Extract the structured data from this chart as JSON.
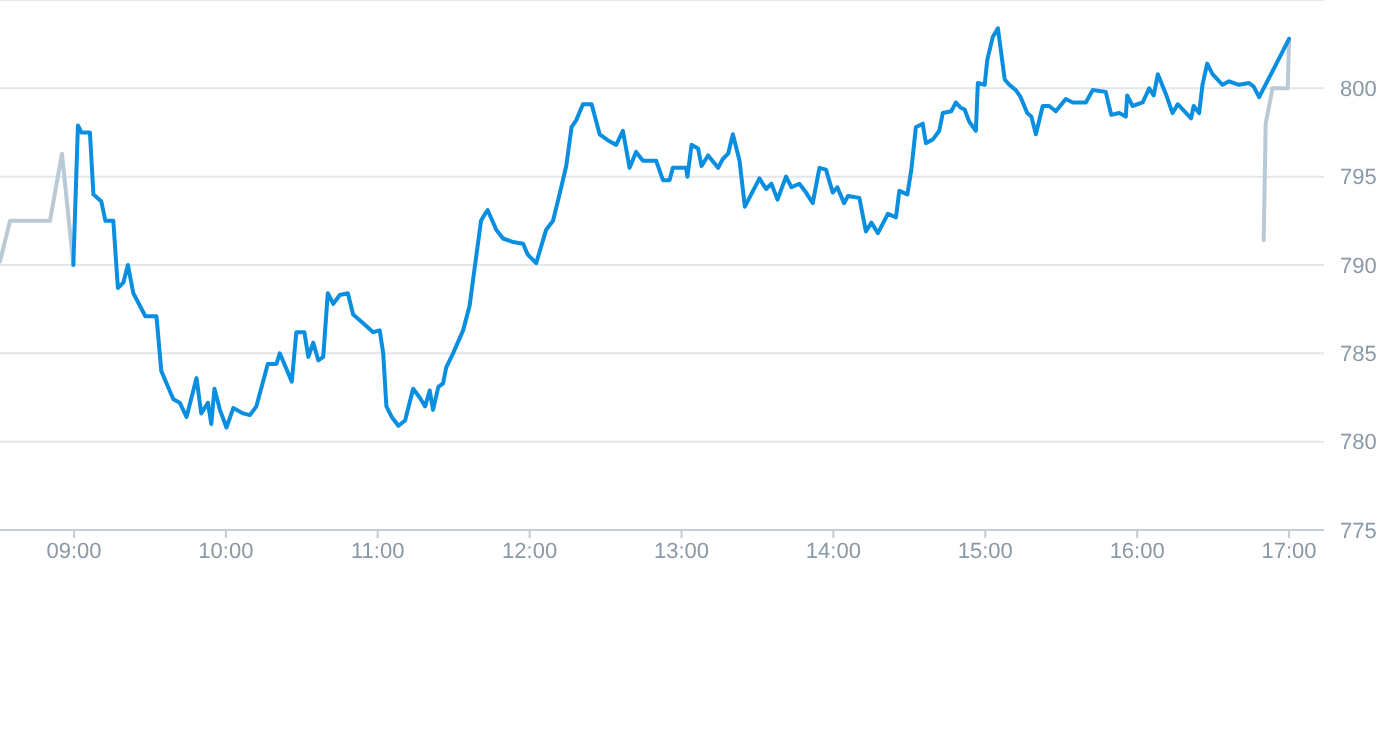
{
  "chart_data": {
    "type": "line",
    "xlim": [
      8.513,
      17.23
    ],
    "ylim": [
      775,
      805
    ],
    "xticks": [
      {
        "value": 9,
        "label": "09:00"
      },
      {
        "value": 10,
        "label": "10:00"
      },
      {
        "value": 11,
        "label": "11:00"
      },
      {
        "value": 12,
        "label": "12:00"
      },
      {
        "value": 13,
        "label": "13:00"
      },
      {
        "value": 14,
        "label": "14:00"
      },
      {
        "value": 15,
        "label": "15:00"
      },
      {
        "value": 16,
        "label": "16:00"
      },
      {
        "value": 17,
        "label": "17:00"
      }
    ],
    "yticks": [
      775,
      780,
      785,
      790,
      795,
      800
    ],
    "grid": "y",
    "marker": "none",
    "line_style": "solid",
    "series": [
      {
        "color": "#b9c9d6",
        "x": [
          8.513,
          8.579,
          8.842,
          8.921,
          8.996
        ],
        "values": [
          790.2,
          792.5,
          792.5,
          796.3,
          790.0
        ]
      },
      {
        "color": "#b9c9d6",
        "x": [
          16.833,
          16.846,
          16.891,
          16.991,
          17.0
        ],
        "values": [
          791.4,
          798.0,
          800.0,
          800.0,
          802.8
        ]
      },
      {
        "color": "#0a8fe0",
        "x": [
          8.996,
          9.026,
          9.049,
          9.105,
          9.128,
          9.18,
          9.207,
          9.259,
          9.289,
          9.325,
          9.355,
          9.391,
          9.47,
          9.543,
          9.575,
          9.654,
          9.697,
          9.741,
          9.807,
          9.838,
          9.882,
          9.904,
          9.925,
          9.961,
          10.004,
          10.049,
          10.114,
          10.158,
          10.201,
          10.276,
          10.333,
          10.355,
          10.434,
          10.464,
          10.517,
          10.543,
          10.575,
          10.609,
          10.641,
          10.671,
          10.707,
          10.75,
          10.803,
          10.838,
          10.904,
          10.97,
          11.013,
          11.036,
          11.057,
          11.092,
          11.136,
          11.18,
          11.233,
          11.276,
          11.312,
          11.342,
          11.364,
          11.399,
          11.43,
          11.451,
          11.496,
          11.562,
          11.605,
          11.636,
          11.68,
          11.707,
          11.724,
          11.78,
          11.825,
          11.891,
          11.957,
          11.987,
          12.043,
          12.109,
          12.154,
          12.197,
          12.241,
          12.276,
          12.307,
          12.351,
          12.408,
          12.461,
          12.526,
          12.57,
          12.614,
          12.658,
          12.701,
          12.746,
          12.833,
          12.878,
          12.921,
          12.943,
          13.03,
          13.039,
          13.066,
          13.109,
          13.132,
          13.175,
          13.241,
          13.272,
          13.307,
          13.338,
          13.382,
          13.417,
          13.447,
          13.513,
          13.557,
          13.592,
          13.632,
          13.688,
          13.724,
          13.776,
          13.82,
          13.864,
          13.908,
          13.951,
          13.996,
          14.026,
          14.07,
          14.096,
          14.171,
          14.214,
          14.25,
          14.293,
          14.359,
          14.412,
          14.434,
          14.487,
          14.513,
          14.543,
          14.588,
          14.609,
          14.654,
          14.697,
          14.72,
          14.776,
          14.807,
          14.838,
          14.864,
          14.895,
          14.938,
          14.951,
          14.996,
          15.013,
          15.049,
          15.083,
          15.128,
          15.158,
          15.201,
          15.233,
          15.276,
          15.303,
          15.333,
          15.378,
          15.421,
          15.464,
          15.53,
          15.575,
          15.662,
          15.707,
          15.793,
          15.829,
          15.882,
          15.925,
          15.934,
          15.97,
          16.036,
          16.079,
          16.109,
          16.136,
          16.188,
          16.233,
          16.267,
          16.355,
          16.372,
          16.408,
          16.43,
          16.461,
          16.496,
          16.562,
          16.605,
          16.671,
          16.737,
          16.767,
          16.803,
          17.0
        ],
        "values": [
          790.0,
          797.9,
          797.5,
          797.5,
          794.0,
          793.6,
          792.5,
          792.5,
          788.7,
          789.0,
          790.0,
          788.4,
          787.1,
          787.1,
          784.0,
          782.4,
          782.2,
          781.4,
          783.6,
          781.6,
          782.2,
          781.0,
          783.0,
          781.8,
          780.8,
          781.9,
          781.6,
          781.5,
          782.0,
          784.4,
          784.4,
          785.0,
          783.4,
          786.2,
          786.2,
          784.8,
          785.6,
          784.6,
          784.8,
          788.4,
          787.8,
          788.3,
          788.4,
          787.2,
          786.7,
          786.2,
          786.3,
          785.0,
          782.0,
          781.4,
          780.9,
          781.2,
          783.0,
          782.5,
          782.0,
          782.9,
          781.8,
          783.1,
          783.3,
          784.2,
          785.0,
          786.3,
          787.7,
          789.7,
          792.5,
          792.9,
          793.1,
          792.0,
          791.5,
          791.3,
          791.2,
          790.6,
          790.1,
          792.0,
          792.5,
          794.0,
          795.6,
          797.8,
          798.2,
          799.1,
          799.1,
          797.4,
          797.0,
          796.8,
          797.6,
          795.5,
          796.4,
          795.9,
          795.9,
          794.8,
          794.8,
          795.5,
          795.5,
          795.0,
          796.8,
          796.6,
          795.6,
          796.2,
          795.5,
          796.0,
          796.3,
          797.4,
          795.9,
          793.3,
          793.8,
          794.9,
          794.3,
          794.6,
          793.7,
          795.0,
          794.4,
          794.6,
          794.1,
          793.5,
          795.5,
          795.4,
          794.1,
          794.4,
          793.5,
          793.9,
          793.8,
          791.9,
          792.4,
          791.8,
          792.9,
          792.7,
          794.2,
          794.0,
          795.4,
          797.8,
          798.0,
          796.9,
          797.1,
          797.6,
          798.6,
          798.7,
          799.2,
          798.9,
          798.8,
          798.1,
          797.6,
          800.3,
          800.2,
          801.6,
          802.9,
          803.4,
          800.5,
          800.2,
          799.9,
          799.5,
          798.6,
          798.4,
          797.4,
          799.0,
          799.0,
          798.7,
          799.4,
          799.2,
          799.2,
          799.9,
          799.8,
          798.5,
          798.6,
          798.4,
          799.6,
          799.0,
          799.2,
          800.0,
          799.6,
          800.8,
          799.7,
          798.6,
          799.1,
          798.3,
          799.0,
          798.6,
          800.2,
          801.4,
          800.8,
          800.2,
          800.4,
          800.2,
          800.3,
          800.1,
          799.5,
          802.8
        ]
      }
    ]
  }
}
